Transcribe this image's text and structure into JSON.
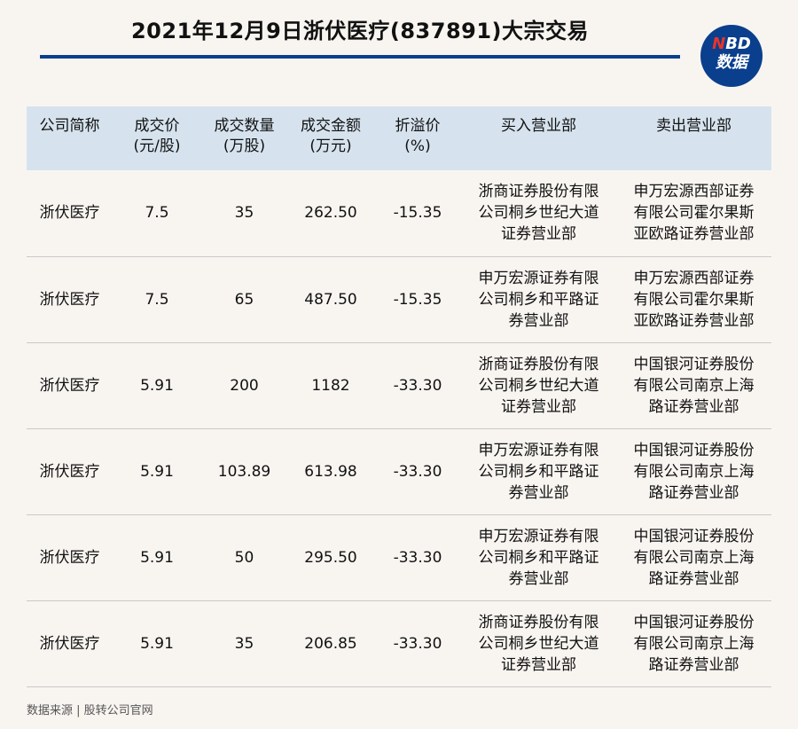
{
  "header": {
    "title": "2021年12月9日浙伏医疗(837891)大宗交易",
    "logo_top_n": "N",
    "logo_top_rest": "BD",
    "logo_bottom": "数据"
  },
  "table": {
    "columns": [
      "公司简称",
      "成交价\n(元/股)",
      "成交数量\n(万股)",
      "成交金额\n(万元)",
      "折溢价\n(%)",
      "买入营业部",
      "卖出营业部"
    ],
    "rows": [
      [
        "浙伏医疗",
        "7.5",
        "35",
        "262.50",
        "-15.35",
        "浙商证券股份有限公司桐乡世纪大道证券营业部",
        "申万宏源西部证券有限公司霍尔果斯亚欧路证券营业部"
      ],
      [
        "浙伏医疗",
        "7.5",
        "65",
        "487.50",
        "-15.35",
        "申万宏源证券有限公司桐乡和平路证券营业部",
        "申万宏源西部证券有限公司霍尔果斯亚欧路证券营业部"
      ],
      [
        "浙伏医疗",
        "5.91",
        "200",
        "1182",
        "-33.30",
        "浙商证券股份有限公司桐乡世纪大道证券营业部",
        "中国银河证券股份有限公司南京上海路证券营业部"
      ],
      [
        "浙伏医疗",
        "5.91",
        "103.89",
        "613.98",
        "-33.30",
        "申万宏源证券有限公司桐乡和平路证券营业部",
        "中国银河证券股份有限公司南京上海路证券营业部"
      ],
      [
        "浙伏医疗",
        "5.91",
        "50",
        "295.50",
        "-33.30",
        "申万宏源证券有限公司桐乡和平路证券营业部",
        "中国银河证券股份有限公司南京上海路证券营业部"
      ],
      [
        "浙伏医疗",
        "5.91",
        "35",
        "206.85",
        "-33.30",
        "浙商证券股份有限公司桐乡世纪大道证券营业部",
        "中国银河证券股份有限公司南京上海路证券营业部"
      ]
    ]
  },
  "footer": {
    "source": "数据来源 | 股转公司官网"
  },
  "colors": {
    "brand_blue": "#0a3f8d",
    "header_bg": "#d6e3ee",
    "page_bg": "#f8f5f1",
    "logo_accent": "#e8332a"
  }
}
